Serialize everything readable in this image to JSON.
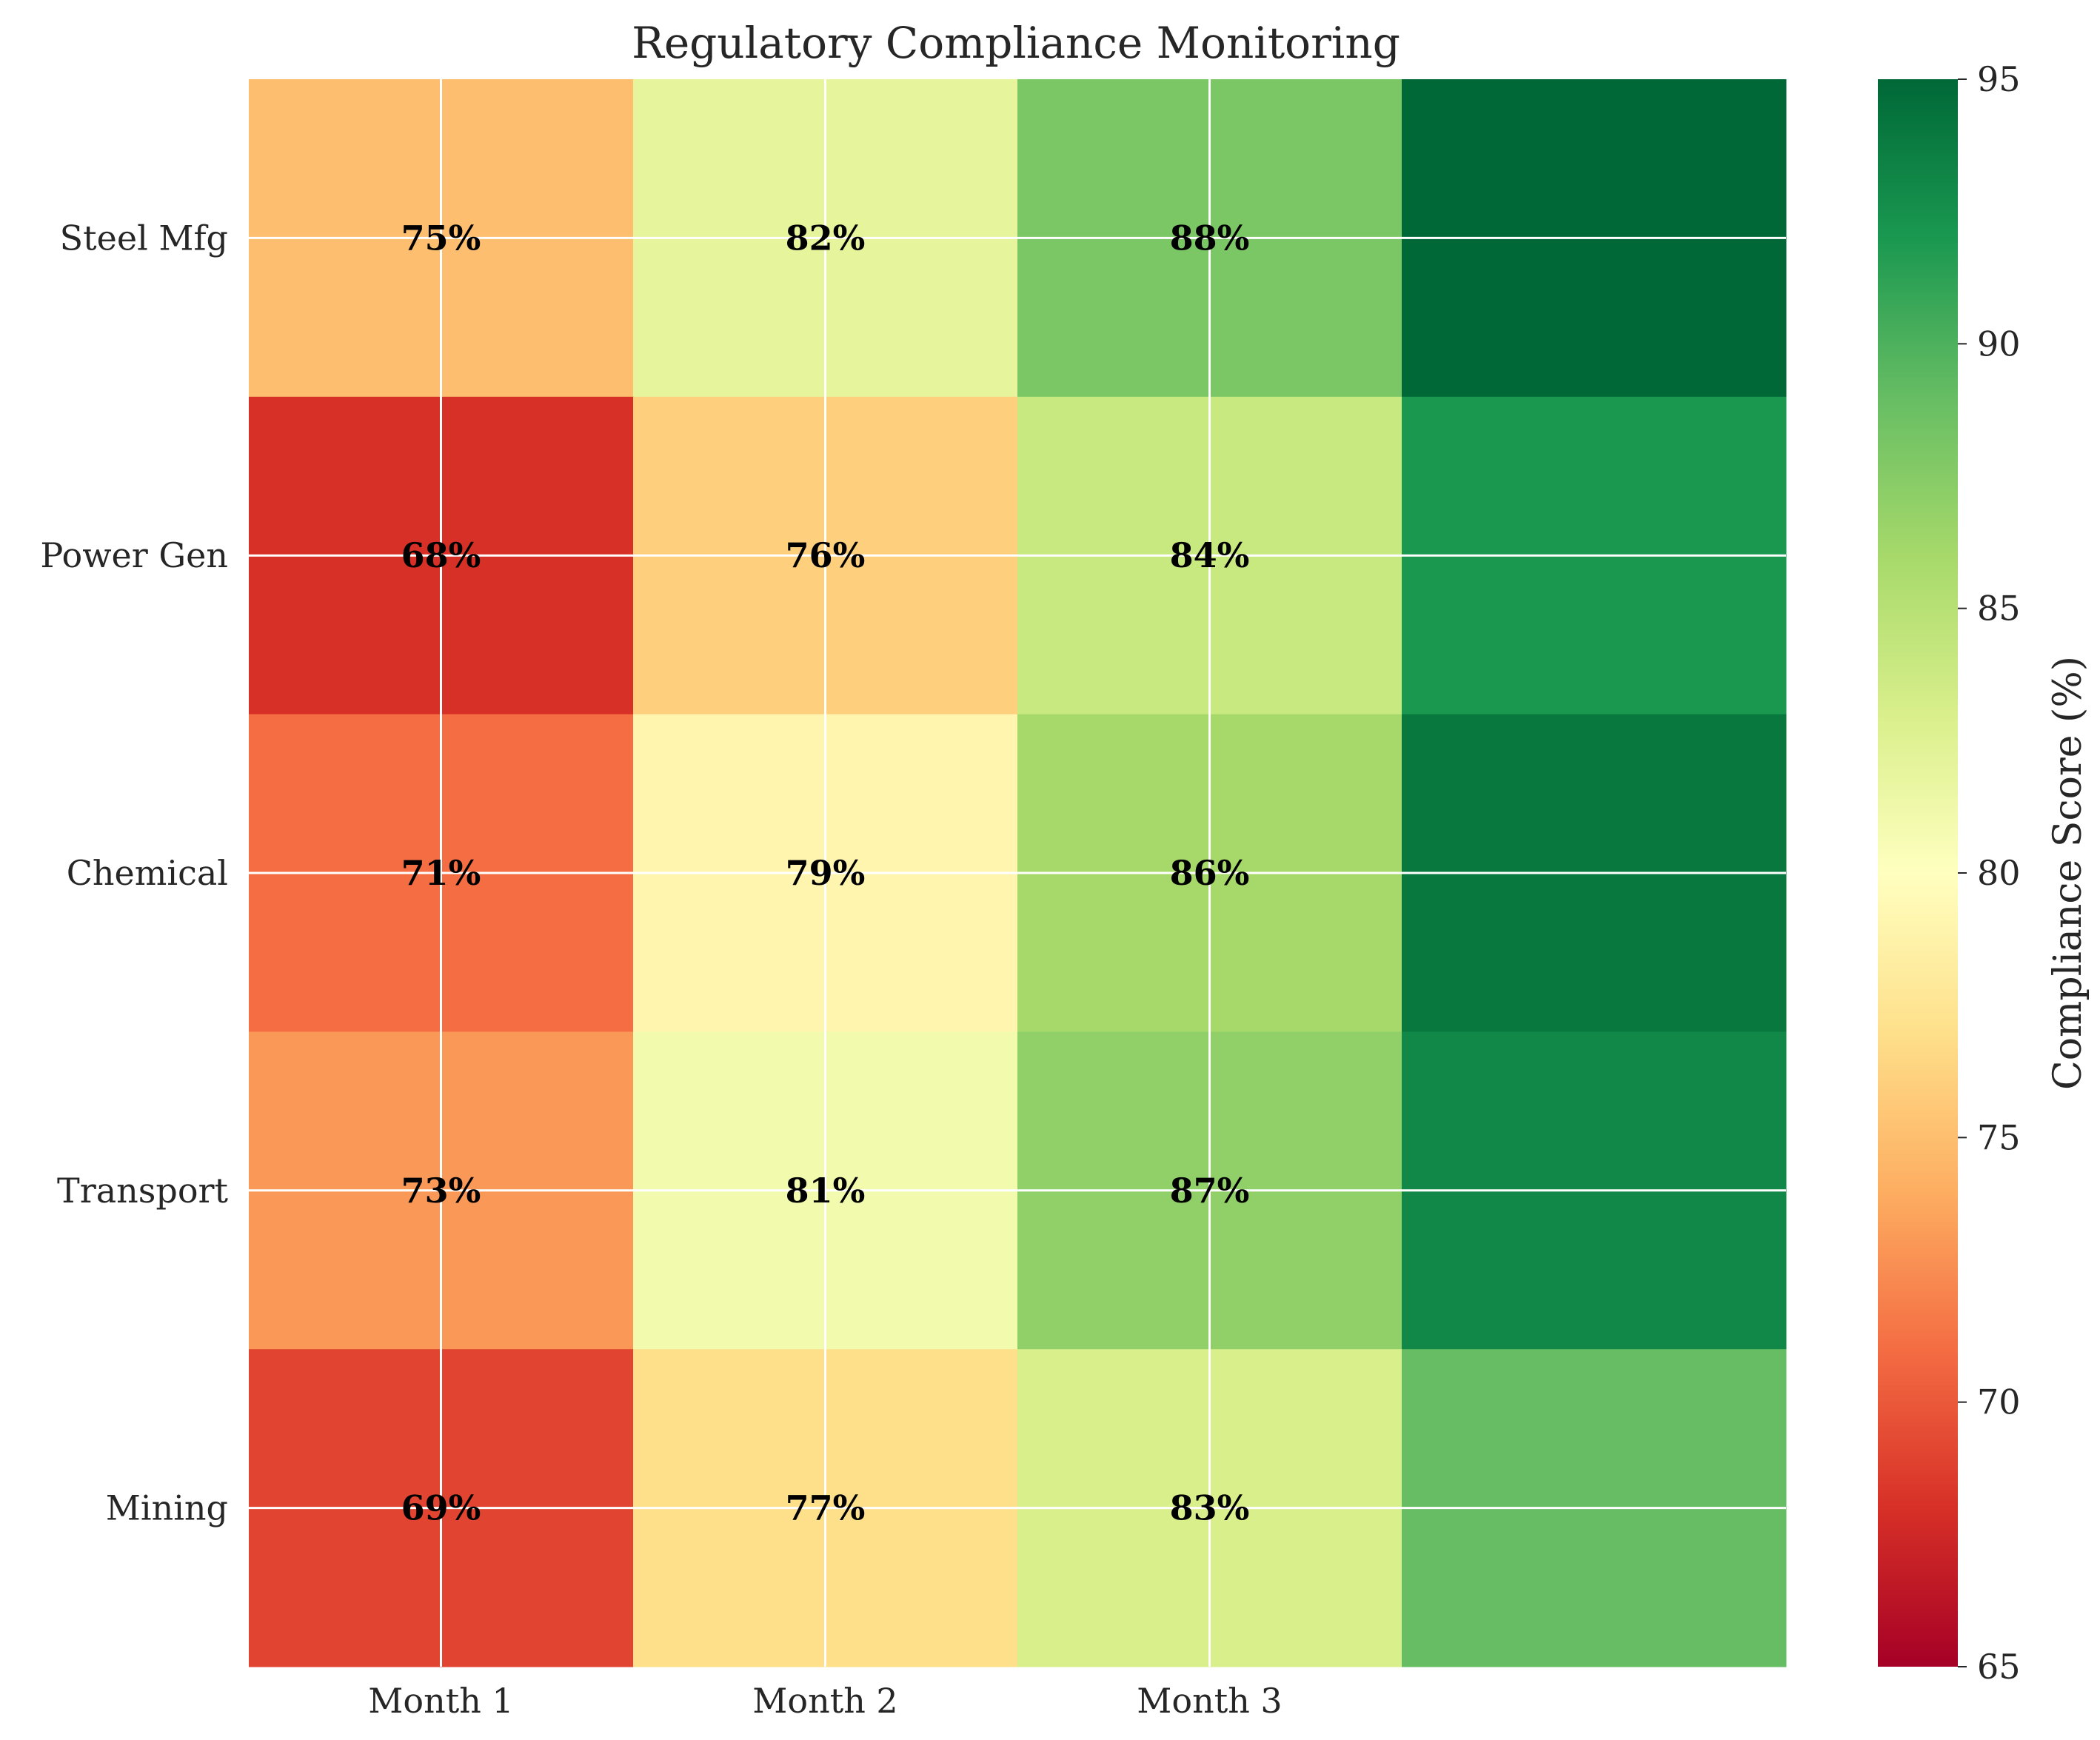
{
  "chart_data": {
    "type": "heatmap",
    "title": "Regulatory Compliance Monitoring",
    "rows": [
      "Steel Mfg",
      "Power Gen",
      "Chemical",
      "Transport",
      "Mining"
    ],
    "columns": [
      "Month 1",
      "Month 2",
      "Month 3",
      ""
    ],
    "values": [
      [
        75,
        82,
        88,
        95
      ],
      [
        68,
        76,
        84,
        92
      ],
      [
        71,
        79,
        86,
        94
      ],
      [
        73,
        81,
        87,
        93
      ],
      [
        69,
        77,
        83,
        89
      ]
    ],
    "cell_labels": [
      [
        "75%",
        "82%",
        "88%",
        ""
      ],
      [
        "68%",
        "76%",
        "84%",
        ""
      ],
      [
        "71%",
        "79%",
        "86%",
        ""
      ],
      [
        "73%",
        "81%",
        "87%",
        ""
      ],
      [
        "69%",
        "77%",
        "83%",
        ""
      ]
    ],
    "colormap": "RdYlGn",
    "colorbar": {
      "label": "Compliance Score (%)",
      "range": [
        65,
        95
      ],
      "ticks": [
        "65",
        "70",
        "75",
        "80",
        "85",
        "90",
        "95"
      ]
    },
    "grid": true
  }
}
